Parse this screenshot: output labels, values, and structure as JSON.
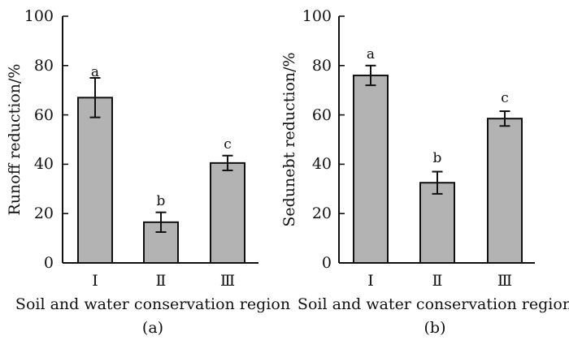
{
  "chart_data": [
    {
      "type": "bar",
      "panel": "(a)",
      "categories": [
        "Ⅰ",
        "Ⅱ",
        "Ⅲ"
      ],
      "values": [
        67,
        16.5,
        40.5
      ],
      "errors": [
        8,
        4,
        3
      ],
      "significance": [
        "a",
        "b",
        "c"
      ],
      "xlabel": "Soil and water conservation region",
      "ylabel": "Runoff reduction/%",
      "ylim": [
        0,
        100
      ],
      "yticks": [
        "0",
        "20",
        "40",
        "60",
        "80",
        "100"
      ]
    },
    {
      "type": "bar",
      "panel": "(b)",
      "categories": [
        "Ⅰ",
        "Ⅱ",
        "Ⅲ"
      ],
      "values": [
        76,
        32.5,
        58.5
      ],
      "errors": [
        4,
        4.5,
        3
      ],
      "significance": [
        "a",
        "b",
        "c"
      ],
      "xlabel": "Soil and water conservation region",
      "ylabel": "Sedunebt reduction/%",
      "ylim": [
        0,
        100
      ],
      "yticks": [
        "0",
        "20",
        "40",
        "60",
        "80",
        "100"
      ]
    }
  ],
  "colors": {
    "bar_fill": "#b3b3b3",
    "stroke": "#111111"
  }
}
